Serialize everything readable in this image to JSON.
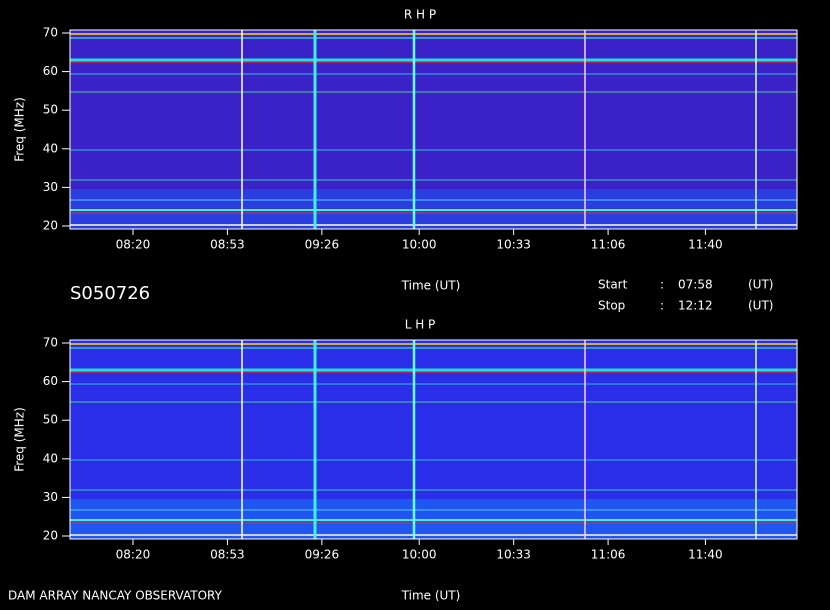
{
  "info": {
    "id": "S050726",
    "start_label": "Start",
    "stop_label": "Stop",
    "sep": ":",
    "start": "07:58",
    "stop": "12:12",
    "unit": "(UT)",
    "footer": "DAM ARRAY   NANCAY OBSERVATORY"
  },
  "chart_data": [
    {
      "type": "spectrogram",
      "title": "R H P",
      "xlabel": "Time (UT)",
      "ylabel": "Freq (MHz)",
      "xlim": [
        "07:58",
        "12:12"
      ],
      "xticks": [
        "08:20",
        "08:53",
        "09:26",
        "10:00",
        "10:33",
        "11:06",
        "11:40"
      ],
      "ylim": [
        20,
        70
      ],
      "yticks": [
        20,
        30,
        40,
        50,
        60,
        70
      ]
    },
    {
      "type": "spectrogram",
      "title": "L H P",
      "xlabel": "Time (UT)",
      "ylabel": "Freq (MHz)",
      "xlim": [
        "07:58",
        "12:12"
      ],
      "xticks": [
        "08:20",
        "08:53",
        "09:26",
        "10:00",
        "10:33",
        "11:06",
        "11:40"
      ],
      "ylim": [
        20,
        70
      ],
      "yticks": [
        20,
        30,
        40,
        50,
        60,
        70
      ]
    }
  ]
}
